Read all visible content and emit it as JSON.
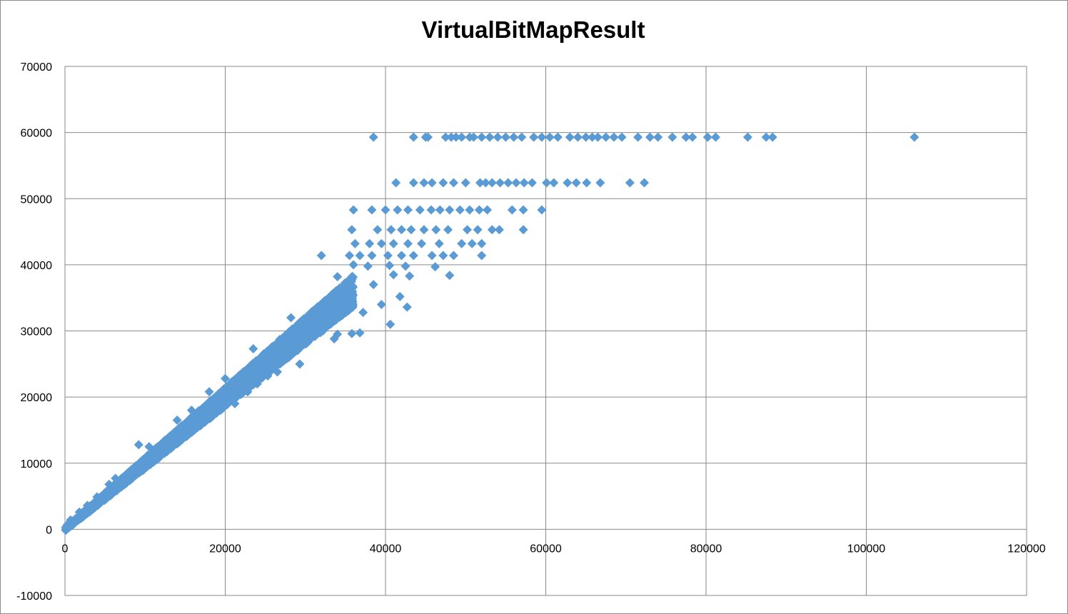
{
  "chart_data": {
    "type": "scatter",
    "title": "VirtualBitMapResult",
    "xlabel": "",
    "ylabel": "",
    "xlim": [
      0,
      120000
    ],
    "ylim": [
      -10000,
      70000
    ],
    "x_ticks": [
      0,
      20000,
      40000,
      60000,
      80000,
      100000,
      120000
    ],
    "y_ticks": [
      -10000,
      0,
      10000,
      20000,
      30000,
      40000,
      50000,
      60000,
      70000
    ],
    "x_tick_labels": [
      "0",
      "20000",
      "40000",
      "60000",
      "80000",
      "100000",
      "120000"
    ],
    "y_tick_labels": [
      "-10000",
      "0",
      "10000",
      "20000",
      "30000",
      "40000",
      "50000",
      "60000",
      "70000"
    ],
    "grid": true,
    "legend": "none",
    "marker": "diamond",
    "color": "#5b9bd5",
    "series": [
      {
        "points": [
          [
            38500,
            59300
          ],
          [
            43500,
            59300
          ],
          [
            45000,
            59300
          ],
          [
            45300,
            59300
          ],
          [
            47500,
            59300
          ],
          [
            48200,
            59300
          ],
          [
            48800,
            59300
          ],
          [
            49500,
            59300
          ],
          [
            50500,
            59300
          ],
          [
            51000,
            59300
          ],
          [
            52000,
            59300
          ],
          [
            53000,
            59300
          ],
          [
            54000,
            59300
          ],
          [
            55000,
            59300
          ],
          [
            56000,
            59300
          ],
          [
            57000,
            59300
          ],
          [
            58500,
            59300
          ],
          [
            59500,
            59300
          ],
          [
            60500,
            59300
          ],
          [
            61500,
            59300
          ],
          [
            63000,
            59300
          ],
          [
            64000,
            59300
          ],
          [
            65000,
            59300
          ],
          [
            65800,
            59300
          ],
          [
            66500,
            59300
          ],
          [
            67500,
            59300
          ],
          [
            68500,
            59300
          ],
          [
            69500,
            59300
          ],
          [
            71500,
            59300
          ],
          [
            73000,
            59300
          ],
          [
            74000,
            59300
          ],
          [
            75800,
            59300
          ],
          [
            77500,
            59300
          ],
          [
            78300,
            59300
          ],
          [
            80200,
            59300
          ],
          [
            81200,
            59300
          ],
          [
            85200,
            59300
          ],
          [
            87500,
            59300
          ],
          [
            88300,
            59300
          ],
          [
            106000,
            59300
          ],
          [
            41300,
            52400
          ],
          [
            43500,
            52400
          ],
          [
            44800,
            52400
          ],
          [
            45800,
            52400
          ],
          [
            47200,
            52400
          ],
          [
            48500,
            52400
          ],
          [
            50000,
            52400
          ],
          [
            51800,
            52400
          ],
          [
            52500,
            52400
          ],
          [
            53300,
            52400
          ],
          [
            54300,
            52400
          ],
          [
            55300,
            52400
          ],
          [
            56300,
            52400
          ],
          [
            57300,
            52400
          ],
          [
            58300,
            52400
          ],
          [
            60100,
            52400
          ],
          [
            61000,
            52400
          ],
          [
            62700,
            52400
          ],
          [
            63800,
            52400
          ],
          [
            65100,
            52400
          ],
          [
            66800,
            52400
          ],
          [
            70500,
            52400
          ],
          [
            72300,
            52400
          ],
          [
            36000,
            48300
          ],
          [
            38300,
            48300
          ],
          [
            40000,
            48300
          ],
          [
            41500,
            48300
          ],
          [
            42800,
            48300
          ],
          [
            44300,
            48300
          ],
          [
            45700,
            48300
          ],
          [
            46800,
            48300
          ],
          [
            48000,
            48300
          ],
          [
            49300,
            48300
          ],
          [
            50500,
            48300
          ],
          [
            51700,
            48300
          ],
          [
            52700,
            48300
          ],
          [
            55800,
            48300
          ],
          [
            57200,
            48300
          ],
          [
            59500,
            48300
          ],
          [
            35800,
            45300
          ],
          [
            39000,
            45300
          ],
          [
            40700,
            45300
          ],
          [
            42000,
            45300
          ],
          [
            43200,
            45300
          ],
          [
            44800,
            45300
          ],
          [
            46300,
            45300
          ],
          [
            47800,
            45300
          ],
          [
            50200,
            45300
          ],
          [
            51500,
            45300
          ],
          [
            53300,
            45300
          ],
          [
            54200,
            45300
          ],
          [
            57200,
            45300
          ],
          [
            36200,
            43200
          ],
          [
            38000,
            43200
          ],
          [
            39500,
            43200
          ],
          [
            41000,
            43200
          ],
          [
            42800,
            43200
          ],
          [
            44500,
            43200
          ],
          [
            46700,
            43200
          ],
          [
            49500,
            43200
          ],
          [
            50800,
            43200
          ],
          [
            52000,
            43200
          ],
          [
            32000,
            41400
          ],
          [
            35500,
            41400
          ],
          [
            36800,
            41400
          ],
          [
            38300,
            41400
          ],
          [
            40300,
            41400
          ],
          [
            42000,
            41400
          ],
          [
            43500,
            41400
          ],
          [
            45800,
            41400
          ],
          [
            47200,
            41400
          ],
          [
            48500,
            41400
          ],
          [
            52000,
            41400
          ],
          [
            36000,
            40000
          ],
          [
            37800,
            39800
          ],
          [
            40500,
            39900
          ],
          [
            42500,
            39800
          ],
          [
            46200,
            39700
          ],
          [
            48000,
            38400
          ],
          [
            41000,
            38500
          ],
          [
            43000,
            38300
          ],
          [
            34000,
            38200
          ],
          [
            38500,
            37000
          ],
          [
            40600,
            31000
          ],
          [
            42700,
            33600
          ],
          [
            41800,
            35200
          ],
          [
            39500,
            34000
          ],
          [
            37200,
            32800
          ],
          [
            35800,
            29600
          ],
          [
            36800,
            29700
          ],
          [
            34000,
            29500
          ],
          [
            30500,
            28900
          ],
          [
            29300,
            25000
          ],
          [
            28000,
            26200
          ],
          [
            27500,
            27600
          ],
          [
            26500,
            23800
          ],
          [
            25300,
            23200
          ],
          [
            24000,
            22000
          ],
          [
            22800,
            20800
          ],
          [
            21200,
            19000
          ],
          [
            19000,
            18500
          ],
          [
            17700,
            17500
          ],
          [
            14000,
            16500
          ],
          [
            13200,
            13300
          ],
          [
            10500,
            12500
          ],
          [
            8800,
            9200
          ],
          [
            8500,
            8400
          ],
          [
            33600,
            28800
          ],
          [
            31800,
            31200
          ],
          [
            29500,
            31500
          ],
          [
            28200,
            32000
          ],
          [
            26800,
            28700
          ],
          [
            23500,
            27300
          ],
          [
            21500,
            22500
          ],
          [
            20000,
            22800
          ],
          [
            18000,
            20800
          ],
          [
            15800,
            18000
          ],
          [
            13800,
            14800
          ],
          [
            12000,
            11500
          ],
          [
            9200,
            12800
          ],
          [
            6300,
            7700
          ],
          [
            5500,
            6800
          ],
          [
            4000,
            4900
          ],
          [
            2800,
            3600
          ],
          [
            1800,
            2600
          ],
          [
            700,
            1400
          ],
          [
            300,
            700
          ]
        ],
        "trend": {
          "x_from": 0,
          "x_to": 36000,
          "slope": 1.0,
          "count": 4000
        }
      }
    ]
  }
}
